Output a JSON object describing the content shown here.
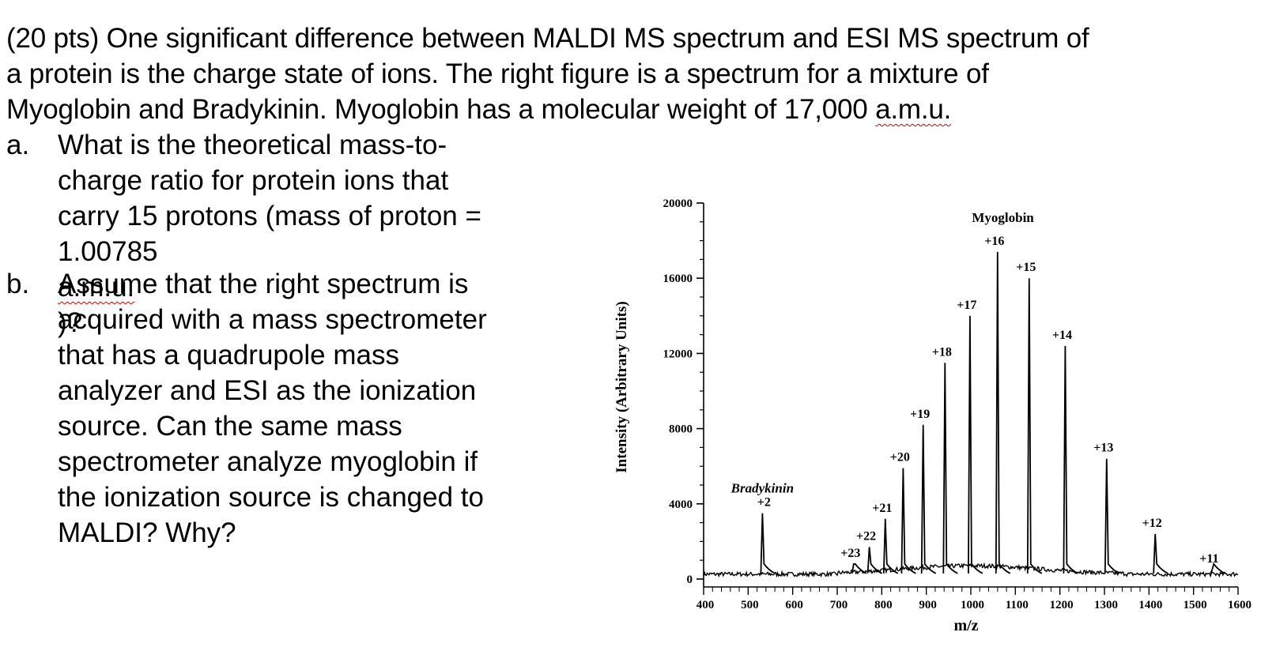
{
  "question": {
    "intro_lines": [
      "(20 pts) One significant difference between MALDI MS spectrum and ESI MS spectrum of",
      "a protein is the charge state of ions. The right figure is a spectrum for a mixture of"
    ],
    "intro_line3_prefix": "Myoglobin and Bradykinin. Myoglobin has a molecular weight of 17,000 ",
    "intro_line3_unit": "a.m.u.",
    "part_a": {
      "marker": "a.",
      "lines": [
        "What is the theoretical mass-to-",
        "charge ratio for protein ions that",
        "carry 15 protons (mass of proton ="
      ],
      "last_prefix": "1.00785 ",
      "last_unit": "a.m.u.",
      "last_suffix": ")?"
    },
    "part_b": {
      "marker": "b.",
      "lines": [
        "Assume that the right spectrum is",
        "acquired with a mass spectrometer",
        "that has a quadrupole mass",
        "analyzer and ESI as the ionization",
        "source. Can the same mass",
        "spectrometer analyze myoglobin if",
        "the ionization source is changed to",
        "MALDI? Why?"
      ]
    }
  },
  "chart_data": {
    "type": "line",
    "title": "",
    "xlabel": "m/z",
    "ylabel": "Intensity (Arbitrary Units)",
    "xlim": [
      400,
      1600
    ],
    "ylim": [
      0,
      20000
    ],
    "x_ticks": [
      "400",
      "500",
      "600",
      "700",
      "800",
      "900",
      "1000",
      "1100",
      "1200",
      "1300",
      "1400",
      "1500",
      "1600"
    ],
    "y_ticks": [
      "0",
      "4000",
      "8000",
      "12000",
      "16000",
      "20000"
    ],
    "peaks": [
      {
        "label": "+2",
        "mz": 532,
        "intensity": 3500
      },
      {
        "label": "+23",
        "mz": 737,
        "intensity": 800
      },
      {
        "label": "+22",
        "mz": 772,
        "intensity": 1700
      },
      {
        "label": "+21",
        "mz": 808,
        "intensity": 3200
      },
      {
        "label": "+20",
        "mz": 848,
        "intensity": 5900
      },
      {
        "label": "+19",
        "mz": 893,
        "intensity": 8200
      },
      {
        "label": "+18",
        "mz": 942,
        "intensity": 11500
      },
      {
        "label": "+17",
        "mz": 998,
        "intensity": 14000
      },
      {
        "label": "+16",
        "mz": 1060,
        "intensity": 17400
      },
      {
        "label": "+15",
        "mz": 1131,
        "intensity": 16000
      },
      {
        "label": "+14",
        "mz": 1212,
        "intensity": 12400
      },
      {
        "label": "+13",
        "mz": 1305,
        "intensity": 6400
      },
      {
        "label": "+12",
        "mz": 1414,
        "intensity": 2400
      },
      {
        "label": "+11",
        "mz": 1542,
        "intensity": 500
      }
    ],
    "annotations": [
      {
        "text": "Myoglobin",
        "mz": 1072,
        "intensity": 19000
      },
      {
        "text": "Bradykinin",
        "mz": 532,
        "intensity": 4600
      }
    ]
  }
}
